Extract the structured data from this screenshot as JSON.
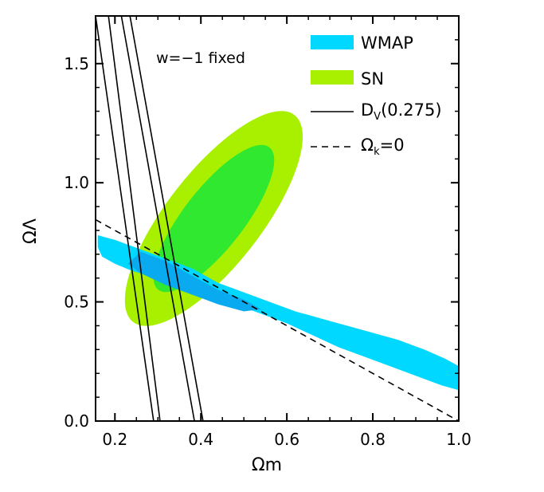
{
  "chart_data": {
    "type": "area",
    "title": "",
    "xlabel": "Ωm",
    "ylabel": "ΩΛ",
    "xlim": [
      0.155,
      1.0
    ],
    "ylim": [
      0.0,
      1.7
    ],
    "x_ticks": [
      "0.2",
      "0.4",
      "0.6",
      "0.8",
      "1.0"
    ],
    "y_ticks": [
      "0.0",
      "0.5",
      "1.0",
      "1.5"
    ],
    "annotation": "w=−1 fixed",
    "legend_position": "top-right",
    "legend": {
      "wmap": "WMAP",
      "sn": "SN",
      "dv_main": "D",
      "dv_sub": "V",
      "dv_tail": "(0.275)",
      "flat_main": "Ω",
      "flat_sub": "k",
      "flat_tail": "=0"
    },
    "colors": {
      "wmap_outer": "#00d8ff",
      "wmap_inner": "#0aaaf0",
      "sn_outer": "#a8f000",
      "sn_inner": "#30e830"
    },
    "series": [
      {
        "name": "SN",
        "kind": "ellipse-contours",
        "center": [
          0.43,
          0.85
        ],
        "outer": {
          "a": 0.61,
          "b": 0.22,
          "angle_deg": 52
        },
        "inner": {
          "a": 0.42,
          "b": 0.14,
          "angle_deg": 52
        }
      },
      {
        "name": "WMAP",
        "kind": "polygon-contours",
        "outer": [
          [
            0.16,
            0.78
          ],
          [
            0.2,
            0.76
          ],
          [
            0.26,
            0.72
          ],
          [
            0.32,
            0.68
          ],
          [
            0.38,
            0.64
          ],
          [
            0.44,
            0.58
          ],
          [
            0.5,
            0.54
          ],
          [
            0.56,
            0.5
          ],
          [
            0.62,
            0.46
          ],
          [
            0.7,
            0.42
          ],
          [
            0.78,
            0.38
          ],
          [
            0.86,
            0.34
          ],
          [
            0.92,
            0.3
          ],
          [
            0.97,
            0.26
          ],
          [
            1.0,
            0.23
          ],
          [
            1.0,
            0.13
          ],
          [
            0.96,
            0.15
          ],
          [
            0.9,
            0.19
          ],
          [
            0.84,
            0.23
          ],
          [
            0.78,
            0.27
          ],
          [
            0.72,
            0.31
          ],
          [
            0.66,
            0.36
          ],
          [
            0.6,
            0.41
          ],
          [
            0.54,
            0.45
          ],
          [
            0.48,
            0.49
          ],
          [
            0.42,
            0.52
          ],
          [
            0.36,
            0.56
          ],
          [
            0.3,
            0.6
          ],
          [
            0.24,
            0.63
          ],
          [
            0.2,
            0.66
          ],
          [
            0.17,
            0.69
          ],
          [
            0.16,
            0.73
          ]
        ],
        "inner": [
          [
            0.26,
            0.71
          ],
          [
            0.32,
            0.67
          ],
          [
            0.38,
            0.61
          ],
          [
            0.44,
            0.55
          ],
          [
            0.5,
            0.51
          ],
          [
            0.54,
            0.47
          ],
          [
            0.5,
            0.46
          ],
          [
            0.44,
            0.49
          ],
          [
            0.38,
            0.53
          ],
          [
            0.32,
            0.57
          ],
          [
            0.26,
            0.62
          ],
          [
            0.23,
            0.66
          ]
        ]
      },
      {
        "name": "DV(0.275)",
        "kind": "lines",
        "lines": [
          [
            [
              0.155,
              1.7
            ],
            [
              0.29,
              0.0
            ]
          ],
          [
            [
              0.185,
              1.7
            ],
            [
              0.305,
              0.0
            ]
          ],
          [
            [
              0.215,
              1.7
            ],
            [
              0.385,
              0.0
            ]
          ],
          [
            [
              0.235,
              1.7
            ],
            [
              0.405,
              0.0
            ]
          ]
        ]
      },
      {
        "name": "Ωk=0",
        "kind": "dashed-line",
        "points": [
          [
            0.155,
            0.845
          ],
          [
            1.0,
            0.0
          ]
        ]
      }
    ]
  }
}
